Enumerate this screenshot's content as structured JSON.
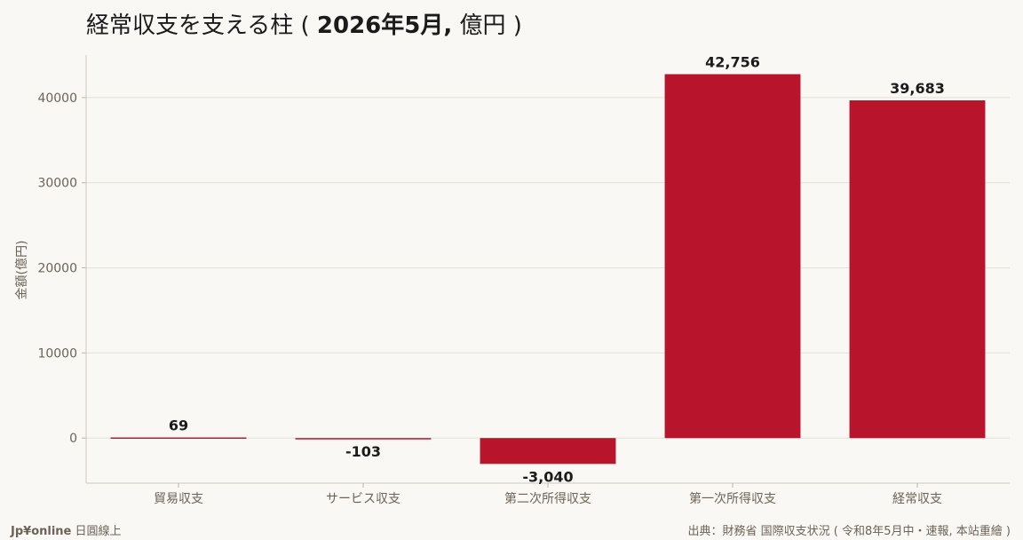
{
  "title_main": "経常収支を支える柱 (",
  "title_bold": "2026年5月,",
  "title_unit": "億円 )",
  "footer": {
    "brand": "Jp¥online",
    "brand_suffix": "日圓線上",
    "source": "出典：財務省 国際収支状況 ( 令和8年5月中・速報, 本站重繪 )"
  },
  "chart_data": {
    "type": "bar",
    "categories": [
      "貿易収支",
      "サービス収支",
      "第二次所得収支",
      "第一次所得収支",
      "経常収支"
    ],
    "values": [
      69,
      -103,
      -3040,
      42756,
      39683
    ],
    "value_labels": [
      "69",
      "-103",
      "-3,040",
      "42,756",
      "39,683"
    ],
    "ylabel": "金額(億円)",
    "xlabel": "",
    "ylim": [
      -5300,
      45000
    ],
    "yticks": [
      0,
      10000,
      20000,
      30000,
      40000
    ],
    "grid": true,
    "bar_color": "#b8142b"
  }
}
